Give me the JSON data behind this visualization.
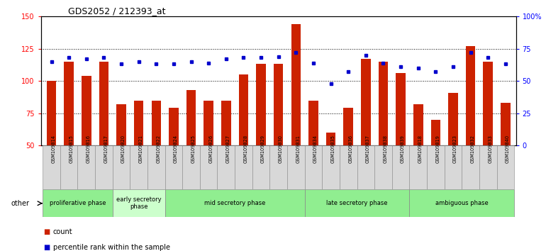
{
  "title": "GDS2052 / 212393_at",
  "samples": [
    "GSM109814",
    "GSM109815",
    "GSM109816",
    "GSM109817",
    "GSM109820",
    "GSM109821",
    "GSM109822",
    "GSM109824",
    "GSM109825",
    "GSM109826",
    "GSM109827",
    "GSM109828",
    "GSM109829",
    "GSM109830",
    "GSM109831",
    "GSM109834",
    "GSM109835",
    "GSM109836",
    "GSM109837",
    "GSM109838",
    "GSM109839",
    "GSM109818",
    "GSM109819",
    "GSM109823",
    "GSM109832",
    "GSM109833",
    "GSM109840"
  ],
  "counts": [
    100,
    115,
    104,
    115,
    82,
    85,
    85,
    79,
    93,
    85,
    85,
    105,
    113,
    113,
    144,
    85,
    60,
    79,
    117,
    115,
    106,
    82,
    70,
    91,
    127,
    115,
    83
  ],
  "percentiles": [
    65,
    68,
    67,
    68,
    63,
    65,
    63,
    63,
    65,
    64,
    67,
    68,
    68,
    69,
    72,
    64,
    48,
    57,
    70,
    64,
    61,
    60,
    57,
    61,
    72,
    68,
    63
  ],
  "phases": [
    {
      "label": "proliferative phase",
      "start": 0,
      "end": 4,
      "color": "#90EE90"
    },
    {
      "label": "early secretory\nphase",
      "start": 4,
      "end": 7,
      "color": "#CCFFCC"
    },
    {
      "label": "mid secretory phase",
      "start": 7,
      "end": 15,
      "color": "#90EE90"
    },
    {
      "label": "late secretory phase",
      "start": 15,
      "end": 21,
      "color": "#90EE90"
    },
    {
      "label": "ambiguous phase",
      "start": 21,
      "end": 27,
      "color": "#90EE90"
    }
  ],
  "bar_color": "#CC2200",
  "dot_color": "#0000CC",
  "ylim_left": [
    50,
    150
  ],
  "ylim_right": [
    0,
    100
  ],
  "yticks_left": [
    50,
    75,
    100,
    125,
    150
  ],
  "yticks_right": [
    0,
    25,
    50,
    75,
    100
  ],
  "grid_lines": [
    75,
    100,
    125
  ],
  "xtick_bg": "#D8D8D8",
  "phase_border": "#888888"
}
